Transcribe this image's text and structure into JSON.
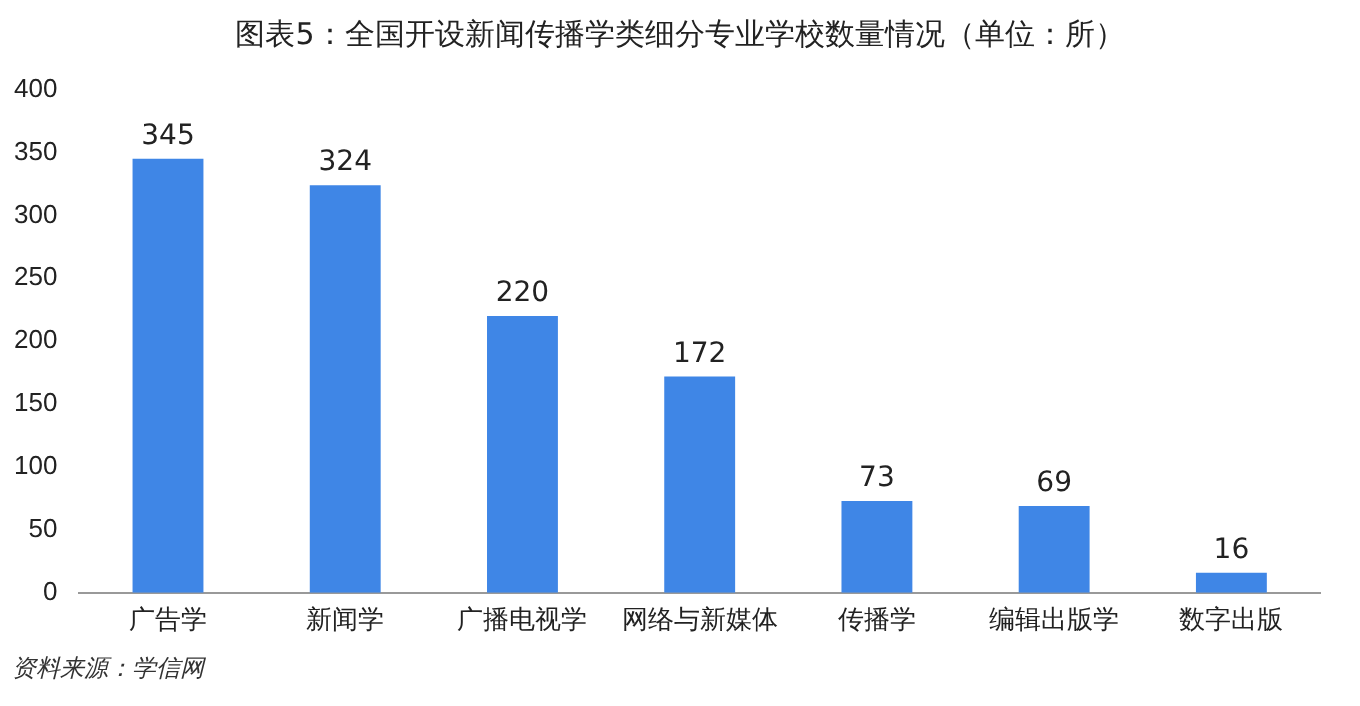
{
  "chart_data": {
    "type": "bar",
    "title": "图表5：全国开设新闻传播学类细分专业学校数量情况（单位：所）",
    "categories": [
      "广告学",
      "新闻学",
      "广播电视学",
      "网络与新媒体",
      "传播学",
      "编辑出版学",
      "数字出版"
    ],
    "values": [
      345,
      324,
      220,
      172,
      73,
      69,
      16
    ],
    "color": "#3f86e6",
    "ylim": [
      0,
      400
    ],
    "yticks": [
      0,
      50,
      100,
      150,
      200,
      250,
      300,
      350,
      400
    ],
    "grid": false,
    "data_labels": true,
    "annotations": [
      "资料来源：学信网"
    ]
  }
}
